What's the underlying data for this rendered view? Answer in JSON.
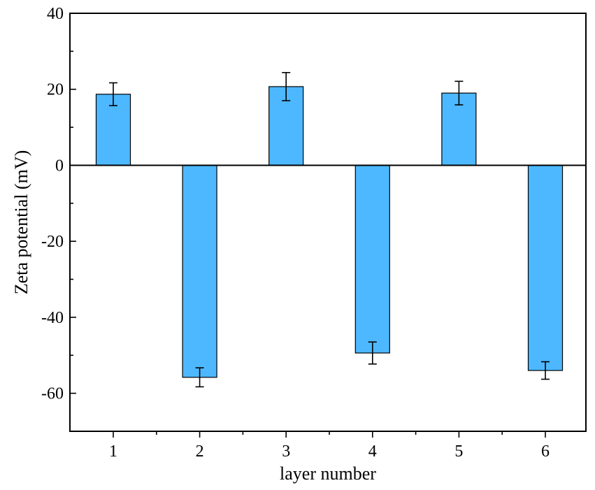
{
  "chart_data": {
    "type": "bar",
    "categories": [
      "1",
      "2",
      "3",
      "4",
      "5",
      "6"
    ],
    "values": [
      18.7,
      -55.8,
      20.7,
      -49.4,
      19.0,
      -54.0
    ],
    "errors": [
      3.0,
      2.5,
      3.7,
      2.9,
      3.1,
      2.3
    ],
    "xlabel": "layer number",
    "ylabel": "Zeta potential (mV)",
    "ylim": [
      -70,
      40
    ],
    "yticks": [
      40,
      20,
      0,
      -20,
      -40,
      -60
    ],
    "ytick_labels": [
      "40",
      "20",
      "0",
      "-20",
      "-40",
      "-60"
    ],
    "bar_color": "#4db8ff",
    "grid": false,
    "legend": "none"
  }
}
